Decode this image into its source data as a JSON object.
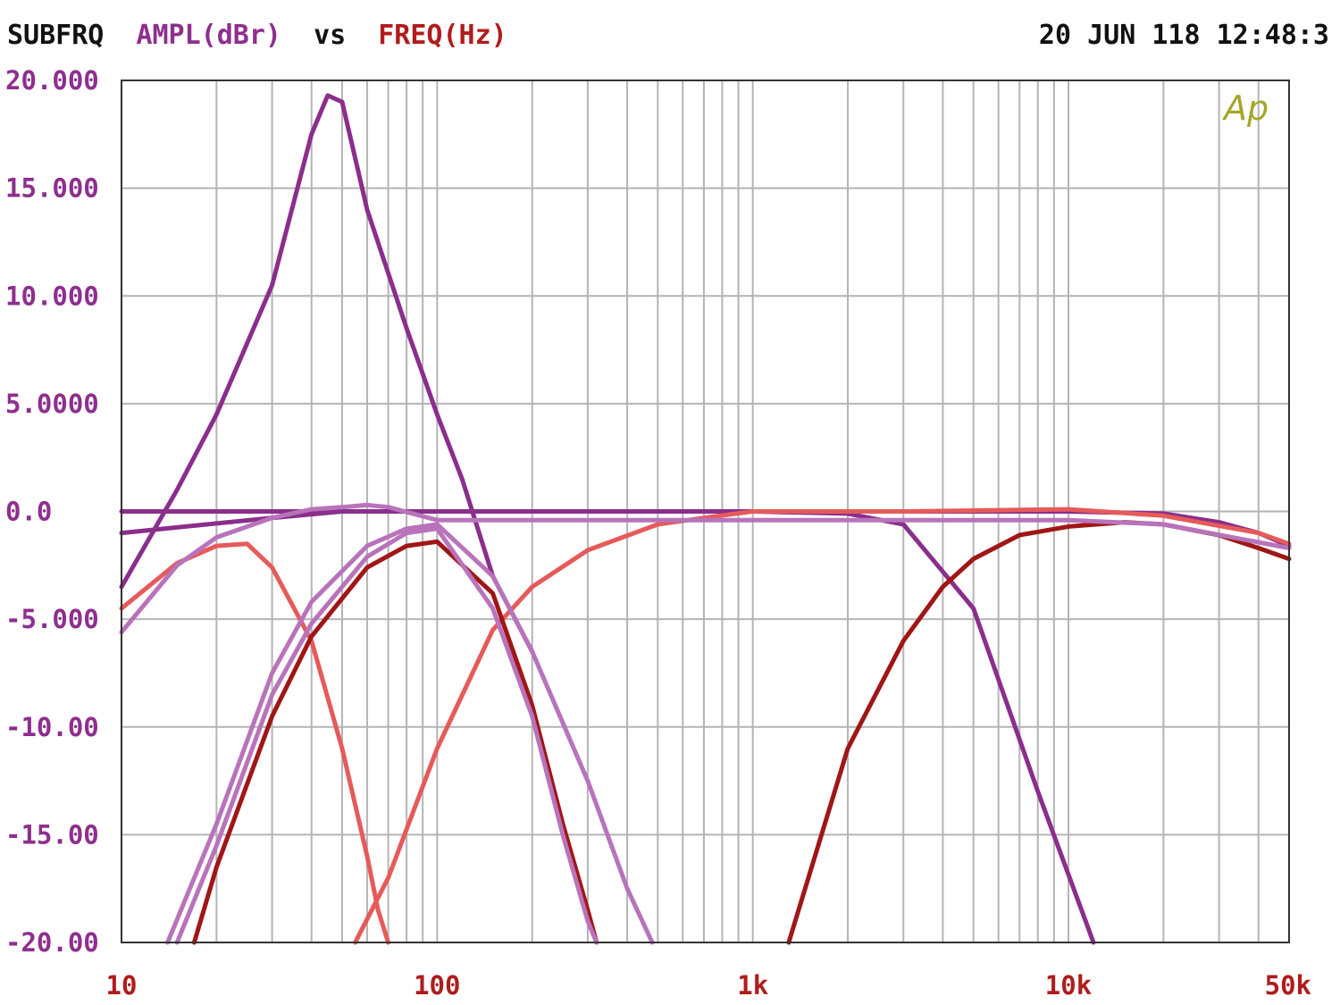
{
  "header": {
    "left_label": "SUBFRQ",
    "y_quantity": "AMPL(dBr)",
    "vs_label": "vs",
    "x_quantity": "FREQ(Hz)",
    "timestamp": "20 JUN 118 12:48:3"
  },
  "logo_text": "Ap",
  "colors": {
    "frame": "#333333",
    "grid": "#b4b4b4",
    "header_text": "#111111",
    "y_axis_text": "#8e2f8e",
    "x_axis_text": "#b01c1c",
    "logo": "#a6a62a"
  },
  "chart_data": {
    "type": "line",
    "x_scale": "log",
    "xlim": [
      10,
      50000
    ],
    "ylim": [
      -20,
      20
    ],
    "grid": true,
    "xlabel": "FREQ(Hz)",
    "ylabel": "AMPL(dBr)",
    "x_ticks": [
      {
        "value": 10,
        "label": "10"
      },
      {
        "value": 100,
        "label": "100"
      },
      {
        "value": 1000,
        "label": "1k"
      },
      {
        "value": 10000,
        "label": "10k"
      },
      {
        "value": 50000,
        "label": "50k"
      }
    ],
    "y_ticks": [
      {
        "value": 20,
        "label": "20.000"
      },
      {
        "value": 15,
        "label": "15.000"
      },
      {
        "value": 10,
        "label": "10.000"
      },
      {
        "value": 5,
        "label": "5.0000"
      },
      {
        "value": 0,
        "label": "0.0"
      },
      {
        "value": -5,
        "label": "-5.000"
      },
      {
        "value": -10,
        "label": "-10.00"
      },
      {
        "value": -15,
        "label": "-15.00"
      },
      {
        "value": -20,
        "label": "-20.00"
      }
    ],
    "series": [
      {
        "color": "#8a2e8c",
        "x": [
          10,
          15,
          20,
          30,
          40,
          45,
          50,
          60,
          80,
          100,
          120,
          150,
          200
        ],
        "y": [
          -3.5,
          1,
          4.5,
          10.5,
          17.5,
          19.3,
          19,
          14,
          8.5,
          4.5,
          1.5,
          -3,
          -6.5
        ]
      },
      {
        "color": "#8a2e8c",
        "x": [
          10,
          30,
          50,
          100,
          200,
          500,
          1000,
          2000,
          3000,
          5000,
          8000,
          11000,
          12000
        ],
        "y": [
          -1,
          -0.3,
          0,
          0,
          0,
          0,
          0,
          -0.1,
          -0.6,
          -4.5,
          -13,
          -18.5,
          -20
        ]
      },
      {
        "color": "#8a2e8c",
        "x": [
          10,
          100,
          1000,
          10000,
          20000,
          30000,
          40000,
          50000
        ],
        "y": [
          0,
          0,
          0,
          0,
          -0.1,
          -0.5,
          -1,
          -1.6
        ]
      },
      {
        "color": "#e65a5a",
        "x": [
          10,
          15,
          20,
          25,
          30,
          40,
          50,
          60,
          65,
          70
        ],
        "y": [
          -4.5,
          -2.4,
          -1.6,
          -1.5,
          -2.6,
          -6,
          -11,
          -16,
          -18.5,
          -20
        ]
      },
      {
        "color": "#e65a5a",
        "x": [
          55,
          70,
          100,
          150,
          200,
          300,
          500,
          700,
          1000,
          3000,
          10000,
          20000,
          40000,
          50000
        ],
        "y": [
          -20,
          -17,
          -11,
          -5.5,
          -3.5,
          -1.8,
          -0.6,
          -0.3,
          0,
          0,
          0.1,
          -0.2,
          -1,
          -1.5
        ]
      },
      {
        "color": "#a01616",
        "x": [
          17,
          20,
          30,
          40,
          60,
          80,
          100,
          150,
          200,
          250,
          300,
          320
        ],
        "y": [
          -20,
          -16.5,
          -9.5,
          -5.8,
          -2.6,
          -1.6,
          -1.4,
          -3.8,
          -9,
          -14.5,
          -18.5,
          -20
        ]
      },
      {
        "color": "#a01616",
        "x": [
          1300,
          2000,
          3000,
          4000,
          5000,
          7000,
          10000,
          15000,
          20000,
          30000,
          40000,
          50000
        ],
        "y": [
          -20,
          -11,
          -6,
          -3.5,
          -2.2,
          -1.1,
          -0.7,
          -0.5,
          -0.6,
          -1.1,
          -1.7,
          -2.2
        ]
      },
      {
        "color": "#b873bb",
        "x": [
          10,
          15,
          20,
          30,
          40,
          50,
          60,
          70,
          100,
          200,
          500,
          1000,
          5000,
          10000,
          20000,
          50000
        ],
        "y": [
          -5.6,
          -2.5,
          -1.2,
          -0.3,
          0.1,
          0.2,
          0.3,
          0.2,
          -0.4,
          -0.4,
          -0.4,
          -0.4,
          -0.4,
          -0.4,
          -0.6,
          -1.7
        ]
      },
      {
        "color": "#b873bb",
        "x": [
          14,
          20,
          30,
          40,
          60,
          80,
          100,
          150,
          200,
          300,
          400,
          480
        ],
        "y": [
          -20,
          -14.5,
          -7.5,
          -4.2,
          -1.6,
          -0.8,
          -0.6,
          -3,
          -6.5,
          -12.5,
          -17.5,
          -20
        ]
      },
      {
        "color": "#b873bb",
        "x": [
          15,
          20,
          30,
          40,
          60,
          80,
          100,
          150,
          200,
          250,
          300,
          320
        ],
        "y": [
          -20,
          -15.5,
          -8.5,
          -5.2,
          -2.1,
          -1,
          -0.8,
          -4.5,
          -9.5,
          -15,
          -19,
          -20
        ]
      }
    ]
  }
}
